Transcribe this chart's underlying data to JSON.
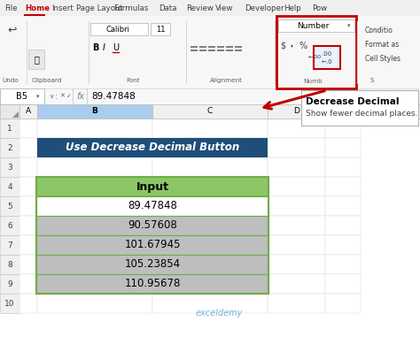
{
  "title": "Use Decrease Decimal Button",
  "title_bg": "#1F4E79",
  "title_text_color": "#FFFFFF",
  "header_label": "Input",
  "header_bg": "#8DC666",
  "data_values": [
    "89.47848",
    "90.57608",
    "101.67945",
    "105.23854",
    "110.95678"
  ],
  "row_colors_data": [
    "#FFFFFF",
    "#C8C8C8",
    "#C8C8C8",
    "#C8C8C8",
    "#C8C8C8"
  ],
  "col_headers": [
    "A",
    "B",
    "C",
    "D"
  ],
  "row_numbers": [
    "1",
    "2",
    "3",
    "4",
    "5",
    "6",
    "7",
    "8",
    "9",
    "10"
  ],
  "cell_ref": "B5",
  "formula_bar_value": "89.47848",
  "ribbon_tabs": [
    "File",
    "Home",
    "Insert",
    "Page Layout",
    "Formulas",
    "Data",
    "Review",
    "View",
    "Developer",
    "Help",
    "Pow"
  ],
  "number_box_label": "Number",
  "number_box_color": "#C00000",
  "tooltip_title": "Decrease Decimal",
  "tooltip_body": "Show fewer decimal places.",
  "arrow_color": "#C00000",
  "watermark": "exceldemy",
  "table_border_color": "#70AD47",
  "tab_bar_bg": "#F2F2F2",
  "ribbon_bg": "#FAFAFA",
  "ribbon_separator_color": "#D0D0D0",
  "row_num_bg": "#F0F0F0",
  "col_header_bg": "#F0F0F0",
  "sheet_bg": "#FFFFFF",
  "grid_color": "#D0D0D0",
  "formula_bar_bg": "#FFFFFF"
}
